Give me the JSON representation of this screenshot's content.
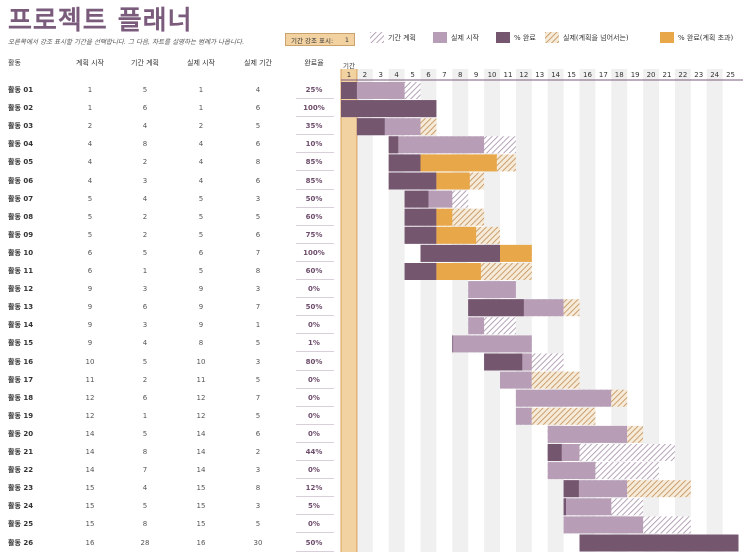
{
  "title": "프로젝트 플래너",
  "subtitle": "오른쪽에서 강조 표시할 기간을 선택합니다. 그 다음, 차트를 설명하는 범례가 나옵니다.",
  "period_highlight": {
    "label": "기간 강조 표시:",
    "value": "1"
  },
  "legend": [
    {
      "key": "plan",
      "label": "기간 계획"
    },
    {
      "key": "actual",
      "label": "실제 시작"
    },
    {
      "key": "complete",
      "label": "% 완료"
    },
    {
      "key": "over",
      "label": "실제(계획을 넘어서는)"
    },
    {
      "key": "complete_over",
      "label": "% 완료(계획 초과)"
    }
  ],
  "headers": {
    "activity": "활동",
    "plan_start": "계획 시작",
    "plan_duration": "기간 계획",
    "actual_start": "실제 시작",
    "actual_duration": "실제 기간",
    "percent_complete": "완료율",
    "period": "기간"
  },
  "colors": {
    "plan_hatch": "#b9a6bb",
    "actual": "#b79db6",
    "complete": "#74566f",
    "over": "#cfa577",
    "complete_over": "#e8a84a",
    "highlight_col": "#f3d2a2",
    "title": "#7a5b7c",
    "grid_stripe": "#f0f0f0"
  },
  "periods": [
    "1",
    "2",
    "3",
    "4",
    "5",
    "6",
    "7",
    "8",
    "9",
    "10",
    "11",
    "12",
    "13",
    "14",
    "15",
    "16",
    "17",
    "18",
    "19",
    "20",
    "21",
    "22",
    "23",
    "24",
    "25"
  ],
  "highlight_period": 1,
  "activities": [
    {
      "name": "활동 01",
      "ps": 1,
      "pd": 5,
      "as": 1,
      "ad": 4,
      "pct": "25%",
      "p": 25
    },
    {
      "name": "활동 02",
      "ps": 1,
      "pd": 6,
      "as": 1,
      "ad": 6,
      "pct": "100%",
      "p": 100
    },
    {
      "name": "활동 03",
      "ps": 2,
      "pd": 4,
      "as": 2,
      "ad": 5,
      "pct": "35%",
      "p": 35
    },
    {
      "name": "활동 04",
      "ps": 4,
      "pd": 8,
      "as": 4,
      "ad": 6,
      "pct": "10%",
      "p": 10
    },
    {
      "name": "활동 05",
      "ps": 4,
      "pd": 2,
      "as": 4,
      "ad": 8,
      "pct": "85%",
      "p": 85
    },
    {
      "name": "활동 06",
      "ps": 4,
      "pd": 3,
      "as": 4,
      "ad": 6,
      "pct": "85%",
      "p": 85
    },
    {
      "name": "활동 07",
      "ps": 5,
      "pd": 4,
      "as": 5,
      "ad": 3,
      "pct": "50%",
      "p": 50
    },
    {
      "name": "활동 08",
      "ps": 5,
      "pd": 2,
      "as": 5,
      "ad": 5,
      "pct": "60%",
      "p": 60
    },
    {
      "name": "활동 09",
      "ps": 5,
      "pd": 2,
      "as": 5,
      "ad": 6,
      "pct": "75%",
      "p": 75
    },
    {
      "name": "활동 10",
      "ps": 6,
      "pd": 5,
      "as": 6,
      "ad": 7,
      "pct": "100%",
      "p": 100
    },
    {
      "name": "활동 11",
      "ps": 6,
      "pd": 1,
      "as": 5,
      "ad": 8,
      "pct": "60%",
      "p": 60
    },
    {
      "name": "활동 12",
      "ps": 9,
      "pd": 3,
      "as": 9,
      "ad": 3,
      "pct": "0%",
      "p": 0
    },
    {
      "name": "활동 13",
      "ps": 9,
      "pd": 6,
      "as": 9,
      "ad": 7,
      "pct": "50%",
      "p": 50
    },
    {
      "name": "활동 14",
      "ps": 9,
      "pd": 3,
      "as": 9,
      "ad": 1,
      "pct": "0%",
      "p": 0
    },
    {
      "name": "활동 15",
      "ps": 9,
      "pd": 4,
      "as": 8,
      "ad": 5,
      "pct": "1%",
      "p": 1
    },
    {
      "name": "활동 16",
      "ps": 10,
      "pd": 5,
      "as": 10,
      "ad": 3,
      "pct": "80%",
      "p": 80
    },
    {
      "name": "활동 17",
      "ps": 11,
      "pd": 2,
      "as": 11,
      "ad": 5,
      "pct": "0%",
      "p": 0
    },
    {
      "name": "활동 18",
      "ps": 12,
      "pd": 6,
      "as": 12,
      "ad": 7,
      "pct": "0%",
      "p": 0
    },
    {
      "name": "활동 19",
      "ps": 12,
      "pd": 1,
      "as": 12,
      "ad": 5,
      "pct": "0%",
      "p": 0
    },
    {
      "name": "활동 20",
      "ps": 14,
      "pd": 5,
      "as": 14,
      "ad": 6,
      "pct": "0%",
      "p": 0
    },
    {
      "name": "활동 21",
      "ps": 14,
      "pd": 8,
      "as": 14,
      "ad": 2,
      "pct": "44%",
      "p": 44
    },
    {
      "name": "활동 22",
      "ps": 14,
      "pd": 7,
      "as": 14,
      "ad": 3,
      "pct": "0%",
      "p": 0
    },
    {
      "name": "활동 23",
      "ps": 15,
      "pd": 4,
      "as": 15,
      "ad": 8,
      "pct": "12%",
      "p": 12
    },
    {
      "name": "활동 24",
      "ps": 15,
      "pd": 5,
      "as": 15,
      "ad": 3,
      "pct": "5%",
      "p": 5
    },
    {
      "name": "활동 25",
      "ps": 15,
      "pd": 8,
      "as": 15,
      "ad": 5,
      "pct": "0%",
      "p": 0
    },
    {
      "name": "활동 26",
      "ps": 16,
      "pd": 28,
      "as": 16,
      "ad": 30,
      "pct": "50%",
      "p": 50
    }
  ]
}
